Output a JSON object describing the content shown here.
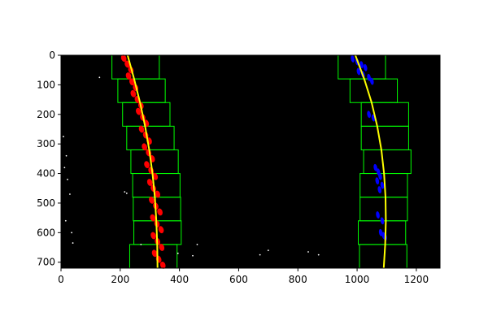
{
  "chart_data": {
    "type": "scatter",
    "title": "",
    "xlabel": "",
    "ylabel": "",
    "xlim": [
      0,
      1280
    ],
    "ylim": [
      720,
      0
    ],
    "grid": false,
    "background_color": "#000000",
    "x_ticks": [
      0,
      200,
      400,
      600,
      800,
      1000,
      1200
    ],
    "y_ticks": [
      0,
      100,
      200,
      300,
      400,
      500,
      600,
      700
    ],
    "x_tick_labels": [
      "0",
      "200",
      "400",
      "600",
      "800",
      "1000",
      "1200"
    ],
    "y_tick_labels": [
      "0",
      "100",
      "200",
      "300",
      "400",
      "500",
      "600",
      "700"
    ],
    "colors": {
      "left_lane_pixels": "#ff0000",
      "right_lane_pixels": "#0000ff",
      "fit_line": "#ffff00",
      "search_window": "#00ff00",
      "noise": "#ffffff"
    },
    "windows": {
      "height": 80,
      "left": [
        {
          "y_top": 0,
          "x_left": 172,
          "x_right": 332
        },
        {
          "y_top": 80,
          "x_left": 192,
          "x_right": 352
        },
        {
          "y_top": 160,
          "x_left": 208,
          "x_right": 368
        },
        {
          "y_top": 240,
          "x_left": 222,
          "x_right": 382
        },
        {
          "y_top": 320,
          "x_left": 236,
          "x_right": 396
        },
        {
          "y_top": 400,
          "x_left": 242,
          "x_right": 402
        },
        {
          "y_top": 480,
          "x_left": 244,
          "x_right": 404
        },
        {
          "y_top": 560,
          "x_left": 246,
          "x_right": 406
        },
        {
          "y_top": 640,
          "x_left": 232,
          "x_right": 392
        }
      ],
      "right": [
        {
          "y_top": 0,
          "x_left": 936,
          "x_right": 1096
        },
        {
          "y_top": 80,
          "x_left": 976,
          "x_right": 1136
        },
        {
          "y_top": 160,
          "x_left": 1014,
          "x_right": 1174
        },
        {
          "y_top": 240,
          "x_left": 1014,
          "x_right": 1174
        },
        {
          "y_top": 320,
          "x_left": 1022,
          "x_right": 1182
        },
        {
          "y_top": 400,
          "x_left": 1010,
          "x_right": 1170
        },
        {
          "y_top": 480,
          "x_left": 1010,
          "x_right": 1170
        },
        {
          "y_top": 560,
          "x_left": 1004,
          "x_right": 1164
        },
        {
          "y_top": 640,
          "x_left": 1008,
          "x_right": 1168
        }
      ]
    },
    "fits": {
      "left": {
        "x": [
          225,
          247,
          267,
          284,
          298,
          309,
          317,
          322,
          325,
          326
        ],
        "y": [
          0,
          80,
          160,
          240,
          320,
          400,
          480,
          560,
          640,
          720
        ]
      },
      "right": {
        "x": [
          994,
          1024,
          1049,
          1068,
          1082,
          1091,
          1096,
          1097,
          1095,
          1090
        ],
        "y": [
          0,
          80,
          160,
          240,
          320,
          400,
          480,
          560,
          640,
          720
        ]
      }
    },
    "series": [
      {
        "role": "left_lane_pixels",
        "x": [
          212,
          224,
          236,
          228,
          240,
          252,
          244,
          258,
          270,
          262,
          276,
          288,
          272,
          286,
          298,
          282,
          296,
          308,
          290,
          304,
          318,
          300,
          312,
          326,
          306,
          320,
          334,
          310,
          324,
          338,
          312,
          326,
          340,
          316,
          330,
          344
        ],
        "y": [
          10,
          30,
          50,
          70,
          90,
          110,
          130,
          150,
          170,
          190,
          210,
          230,
          250,
          270,
          290,
          310,
          330,
          350,
          370,
          390,
          410,
          430,
          450,
          470,
          490,
          510,
          530,
          550,
          570,
          590,
          610,
          630,
          650,
          670,
          690,
          710
        ]
      },
      {
        "role": "right_lane_pixels",
        "x": [
          985,
          1000,
          1015,
          1028,
          1005,
          1020,
          1040,
          1050,
          1040,
          1055,
          1062,
          1072,
          1078,
          1068,
          1085,
          1076,
          1070,
          1085,
          1080,
          1090,
          1095
        ],
        "y": [
          12,
          22,
          32,
          42,
          55,
          65,
          75,
          88,
          200,
          212,
          380,
          395,
          410,
          425,
          440,
          455,
          540,
          560,
          600,
          610,
          615
        ]
      },
      {
        "role": "noise",
        "x": [
          130,
          8,
          18,
          12,
          22,
          30,
          215,
          222,
          16,
          36,
          40,
          270,
          395,
          445,
          460,
          672,
          700,
          835,
          870
        ],
        "y": [
          75,
          275,
          340,
          380,
          420,
          470,
          462,
          467,
          560,
          600,
          635,
          640,
          670,
          678,
          640,
          675,
          660,
          665,
          675
        ]
      }
    ]
  }
}
